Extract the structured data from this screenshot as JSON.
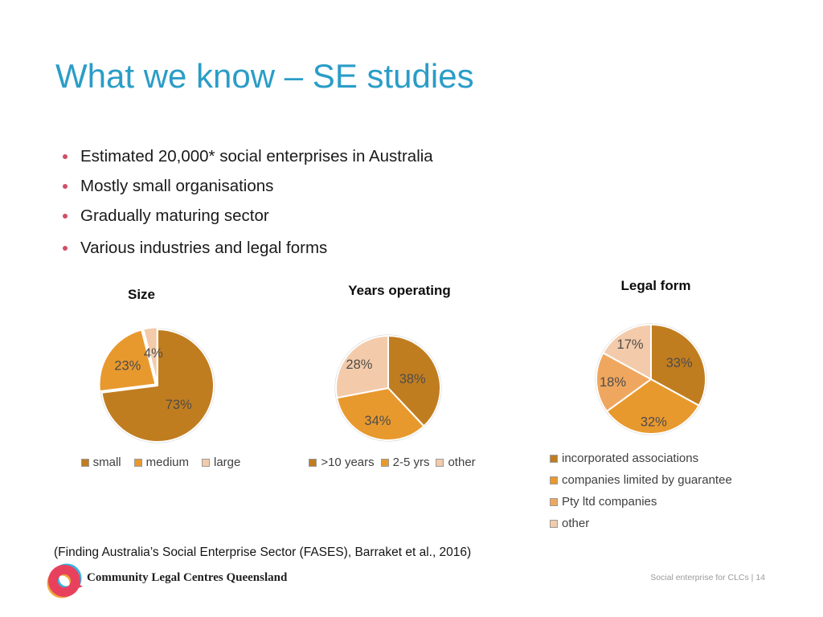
{
  "slide": {
    "title": "What we know – SE studies",
    "bullets": [
      "Estimated 20,000* social enterprises in Australia",
      "Mostly small organisations",
      "Gradually maturing sector",
      "Various industries and legal forms"
    ],
    "citation": "(Finding Australia’s Social Enterprise Sector (FASES), Barraket et al., 2016)",
    "footer": {
      "org_name": "Community Legal Centres Queensland",
      "page_label": "Social enterprise for CLCs | 14"
    }
  },
  "colors": {
    "title_accent": "#2a9dc7",
    "bullet_dot": "#d04e66",
    "pie_label": "#4f4c49",
    "legend_text": "#3f3f3f",
    "page_label": "#9b9b9b",
    "logo_pink": "#e8415e",
    "logo_cyan": "#35b6e6",
    "logo_yellow": "#f2a93b"
  },
  "chart_data": [
    {
      "type": "pie",
      "title": "Size",
      "labels": [
        "small",
        "medium",
        "large"
      ],
      "values": [
        73,
        23,
        4
      ],
      "value_labels": [
        "73%",
        "23%",
        "4%"
      ],
      "colors": [
        "#c07d20",
        "#e8992e",
        "#f3cbaa"
      ],
      "explode": [
        0,
        3,
        2.5
      ],
      "label_r": [
        0.5,
        0.6,
        0.55
      ],
      "start_angle": 0,
      "direction": "clockwise",
      "legend_position": "below-horizontal"
    },
    {
      "type": "pie",
      "title": "Years operating",
      "labels": [
        ">10 years",
        "2-5 yrs",
        "other"
      ],
      "values": [
        38,
        34,
        28
      ],
      "value_labels": [
        "38%",
        "34%",
        "28%"
      ],
      "colors": [
        "#c07d20",
        "#e8992e",
        "#f3cbaa"
      ],
      "explode": [
        0,
        0,
        0
      ],
      "label_r": [
        0.5,
        0.65,
        0.72
      ],
      "start_angle": 0,
      "direction": "clockwise",
      "legend_position": "below-horizontal"
    },
    {
      "type": "pie",
      "title": "Legal form",
      "labels": [
        "incorporated associations",
        "companies limited by guarantee",
        "Pty ltd companies",
        "other"
      ],
      "values": [
        33,
        32,
        18,
        17
      ],
      "value_labels": [
        "33%",
        "32%",
        "18%",
        "17%"
      ],
      "colors": [
        "#c07d20",
        "#e8992e",
        "#efa75f",
        "#f3cbaa"
      ],
      "explode": [
        0,
        0,
        0,
        0
      ],
      "label_r": [
        0.6,
        0.78,
        0.7,
        0.75
      ],
      "start_angle": 0,
      "direction": "clockwise",
      "legend_position": "below-vertical"
    }
  ]
}
